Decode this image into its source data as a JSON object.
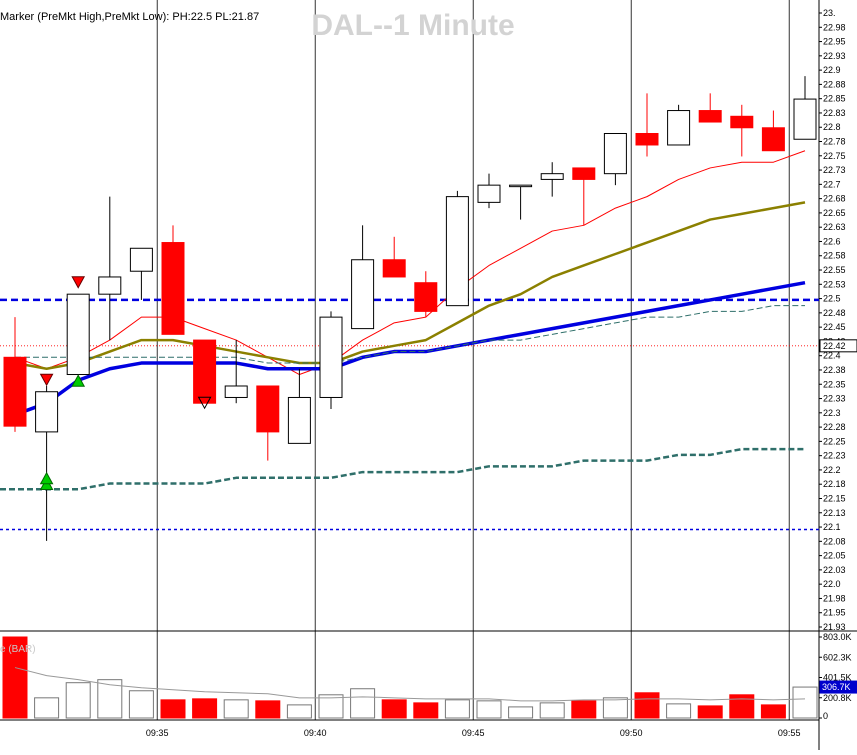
{
  "chart_data": {
    "type": "candlestick",
    "title": "DAL--1 Minute",
    "study_label": "Marker (PreMkt High,PreMkt Low): PH:22.5 PL:21.87",
    "volume_caption": "e (BAR)",
    "price_axis": {
      "min": 21.93,
      "max": 23.0,
      "tick_labels": [
        "23.",
        "22.98",
        "22.95",
        "22.93",
        "22.9",
        "22.88",
        "22.85",
        "22.83",
        "22.8",
        "22.78",
        "22.75",
        "22.73",
        "22.7",
        "22.68",
        "22.65",
        "22.63",
        "22.6",
        "22.58",
        "22.55",
        "22.53",
        "22.5",
        "22.48",
        "22.45",
        "22.43",
        "22.4",
        "22.38",
        "22.35",
        "22.33",
        "22.3",
        "22.28",
        "22.25",
        "22.23",
        "22.2",
        "22.18",
        "22.15",
        "22.13",
        "22.1",
        "22.08",
        "22.05",
        "22.03",
        "22.0",
        "21.98",
        "21.95",
        "21.93"
      ],
      "current_price_label": "22.42",
      "current_price": 22.42
    },
    "volume_axis": {
      "min": 0,
      "max": 803000,
      "tick_labels": [
        "803.0K",
        "602.3K",
        "401.5K",
        "200.8K",
        "0"
      ],
      "tick_values": [
        803000,
        602250,
        401500,
        200750,
        0
      ],
      "current_label": "306.7K",
      "current_value": 306700
    },
    "time_labels": [
      {
        "label": "09:35",
        "bar": 5
      },
      {
        "label": "09:40",
        "bar": 10
      },
      {
        "label": "09:45",
        "bar": 15
      },
      {
        "label": "09:50",
        "bar": 20
      },
      {
        "label": "09:55",
        "bar": 25
      }
    ],
    "candles": [
      {
        "open": 22.4,
        "high": 22.47,
        "low": 22.27,
        "close": 22.28,
        "volume": 803000
      },
      {
        "open": 22.27,
        "high": 22.35,
        "low": 22.08,
        "close": 22.34,
        "volume": 200000
      },
      {
        "open": 22.37,
        "high": 22.51,
        "low": 22.37,
        "close": 22.51,
        "volume": 350000
      },
      {
        "open": 22.51,
        "high": 22.68,
        "low": 22.43,
        "close": 22.54,
        "volume": 380000
      },
      {
        "open": 22.55,
        "high": 22.59,
        "low": 22.5,
        "close": 22.59,
        "volume": 270000
      },
      {
        "open": 22.6,
        "high": 22.63,
        "low": 22.44,
        "close": 22.44,
        "volume": 180000
      },
      {
        "open": 22.43,
        "high": 22.43,
        "low": 22.32,
        "close": 22.32,
        "volume": 190000
      },
      {
        "open": 22.33,
        "high": 22.43,
        "low": 22.32,
        "close": 22.35,
        "volume": 180000
      },
      {
        "open": 22.35,
        "high": 22.35,
        "low": 22.22,
        "close": 22.27,
        "volume": 170000
      },
      {
        "open": 22.25,
        "high": 22.38,
        "low": 22.25,
        "close": 22.33,
        "volume": 130000
      },
      {
        "open": 22.33,
        "high": 22.48,
        "low": 22.31,
        "close": 22.47,
        "volume": 230000
      },
      {
        "open": 22.45,
        "high": 22.63,
        "low": 22.45,
        "close": 22.57,
        "volume": 290000
      },
      {
        "open": 22.57,
        "high": 22.61,
        "low": 22.54,
        "close": 22.54,
        "volume": 180000
      },
      {
        "open": 22.53,
        "high": 22.55,
        "low": 22.47,
        "close": 22.48,
        "volume": 150000
      },
      {
        "open": 22.49,
        "high": 22.69,
        "low": 22.49,
        "close": 22.68,
        "volume": 180000
      },
      {
        "open": 22.67,
        "high": 22.72,
        "low": 22.66,
        "close": 22.7,
        "volume": 170000
      },
      {
        "open": 22.7,
        "high": 22.7,
        "low": 22.64,
        "close": 22.7,
        "volume": 110000
      },
      {
        "open": 22.71,
        "high": 22.74,
        "low": 22.68,
        "close": 22.72,
        "volume": 150000
      },
      {
        "open": 22.73,
        "high": 22.73,
        "low": 22.63,
        "close": 22.71,
        "volume": 170000
      },
      {
        "open": 22.72,
        "high": 22.79,
        "low": 22.7,
        "close": 22.79,
        "volume": 200000
      },
      {
        "open": 22.79,
        "high": 22.86,
        "low": 22.75,
        "close": 22.77,
        "volume": 250000
      },
      {
        "open": 22.77,
        "high": 22.84,
        "low": 22.77,
        "close": 22.83,
        "volume": 140000
      },
      {
        "open": 22.83,
        "high": 22.86,
        "low": 22.81,
        "close": 22.81,
        "volume": 120000
      },
      {
        "open": 22.82,
        "high": 22.84,
        "low": 22.75,
        "close": 22.8,
        "volume": 230000
      },
      {
        "open": 22.8,
        "high": 22.83,
        "low": 22.76,
        "close": 22.76,
        "volume": 130000
      },
      {
        "open": 22.78,
        "high": 22.89,
        "low": 22.78,
        "close": 22.85,
        "volume": 306700
      }
    ],
    "overlays": [
      {
        "style": "red-thin",
        "values": [
          22.4,
          22.38,
          22.4,
          22.43,
          22.47,
          22.47,
          22.45,
          22.43,
          22.4,
          22.37,
          22.39,
          22.43,
          22.46,
          22.47,
          22.52,
          22.56,
          22.59,
          22.62,
          22.63,
          22.66,
          22.68,
          22.71,
          22.73,
          22.74,
          22.74,
          22.76
        ]
      },
      {
        "style": "olive",
        "values": [
          22.39,
          22.38,
          22.39,
          22.41,
          22.43,
          22.43,
          22.42,
          22.41,
          22.4,
          22.39,
          22.39,
          22.41,
          22.42,
          22.43,
          22.46,
          22.49,
          22.51,
          22.54,
          22.56,
          22.58,
          22.6,
          22.62,
          22.64,
          22.65,
          22.66,
          22.67
        ]
      },
      {
        "style": "blue-thick",
        "values": [
          22.3,
          22.32,
          22.36,
          22.38,
          22.39,
          22.39,
          22.39,
          22.39,
          22.38,
          22.38,
          22.38,
          22.4,
          22.41,
          22.41,
          22.42,
          22.43,
          22.44,
          22.45,
          22.46,
          22.47,
          22.48,
          22.49,
          22.5,
          22.51,
          22.52,
          22.53
        ]
      },
      {
        "style": "teal-thin-dashed",
        "values": [
          22.4,
          22.4,
          22.4,
          22.4,
          22.4,
          22.4,
          22.4,
          22.4,
          22.39,
          22.39,
          22.39,
          22.4,
          22.41,
          22.41,
          22.42,
          22.43,
          22.43,
          22.44,
          22.45,
          22.46,
          22.47,
          22.47,
          22.48,
          22.48,
          22.49,
          22.49
        ]
      },
      {
        "style": "teal-thick-dashed",
        "values": [
          22.17,
          22.17,
          22.17,
          22.18,
          22.18,
          22.18,
          22.18,
          22.19,
          22.19,
          22.19,
          22.19,
          22.2,
          22.2,
          22.2,
          22.2,
          22.21,
          22.21,
          22.21,
          22.22,
          22.22,
          22.22,
          22.23,
          22.23,
          22.24,
          22.24,
          22.24
        ]
      }
    ],
    "reference_lines": [
      {
        "value": 22.5,
        "style": "blue-thick-dashed"
      },
      {
        "value": 22.1,
        "style": "blue-dotted"
      },
      {
        "value": 22.42,
        "style": "red-dotted"
      }
    ],
    "markers": [
      {
        "bar": 1,
        "type": "sell",
        "price": 22.36
      },
      {
        "bar": 1,
        "type": "buy",
        "price": 22.18
      },
      {
        "bar": 1,
        "type": "buy",
        "price": 22.19
      },
      {
        "bar": 2,
        "type": "sell",
        "price": 22.53
      },
      {
        "bar": 2,
        "type": "buy",
        "price": 22.36
      },
      {
        "bar": 6,
        "type": "sell-hollow",
        "price": 22.32
      }
    ],
    "volume_average": [
      500000,
      420000,
      380000,
      330000,
      300000,
      280000,
      260000,
      250000,
      240000,
      200000,
      200000,
      210000,
      200000,
      190000,
      190000,
      190000,
      170000,
      170000,
      180000,
      180000,
      190000,
      190000,
      180000,
      190000,
      180000,
      190000
    ],
    "colors": {
      "up_body": "#ffffff",
      "down_body": "#ff0000",
      "outline": "#000000",
      "blue_line": "#0000e0",
      "olive_line": "#8b8000",
      "red_line": "#ff0000",
      "teal_line": "#2f6f6a",
      "buy_marker": "#00cc00",
      "sell_marker": "#ff0000",
      "title_color": "#d3d3d3"
    }
  }
}
